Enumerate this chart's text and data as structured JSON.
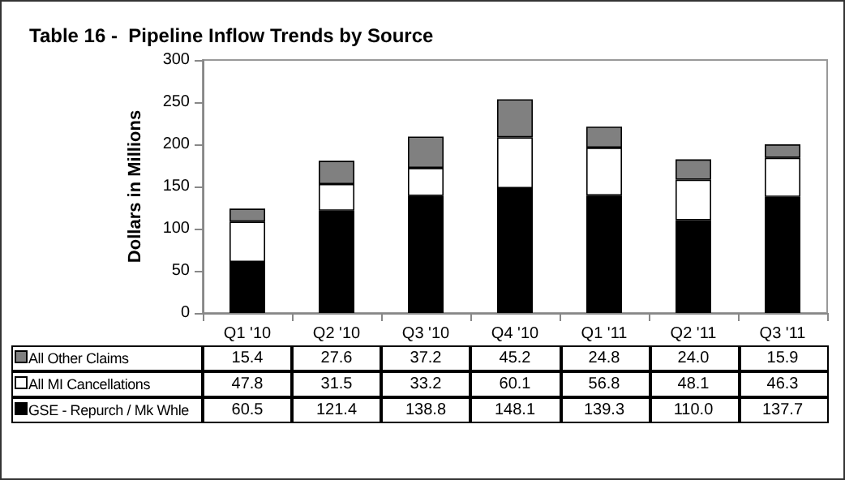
{
  "chart_data": {
    "type": "bar",
    "title": "Table 16 -  Pipeline Inflow Trends by Source",
    "ylabel": "Dollars in Millions",
    "categories": [
      "Q1 '10",
      "Q2 '10",
      "Q3 '10",
      "Q4 '10",
      "Q1 '11",
      "Q2 '11",
      "Q3 '11"
    ],
    "stacked": true,
    "legend": "bottom left",
    "grid": false,
    "ylim": [
      0,
      300
    ],
    "yticks": [
      0,
      50,
      100,
      150,
      200,
      250,
      300
    ],
    "series": [
      {
        "name": "GSE - Repurch / Mk Whle",
        "color": "#000000",
        "values": [
          60.5,
          121.4,
          138.8,
          148.1,
          139.3,
          110.0,
          137.7
        ],
        "value_labels": [
          "60.5",
          "121.4",
          "138.8",
          "148.1",
          "139.3",
          "110.0",
          "137.7"
        ]
      },
      {
        "name": "All MI Cancellations",
        "color": "#ffffff",
        "values": [
          47.8,
          31.5,
          33.2,
          60.1,
          56.8,
          48.1,
          46.3
        ],
        "value_labels": [
          "47.8",
          "31.5",
          "33.2",
          "60.1",
          "56.8",
          "48.1",
          "46.3"
        ]
      },
      {
        "name": "All Other Claims",
        "color": "#808080",
        "values": [
          15.4,
          27.6,
          37.2,
          45.2,
          24.8,
          24.0,
          15.9
        ],
        "value_labels": [
          "15.4",
          "27.6",
          "37.2",
          "45.2",
          "24.8",
          "24.0",
          "15.9"
        ]
      }
    ]
  }
}
